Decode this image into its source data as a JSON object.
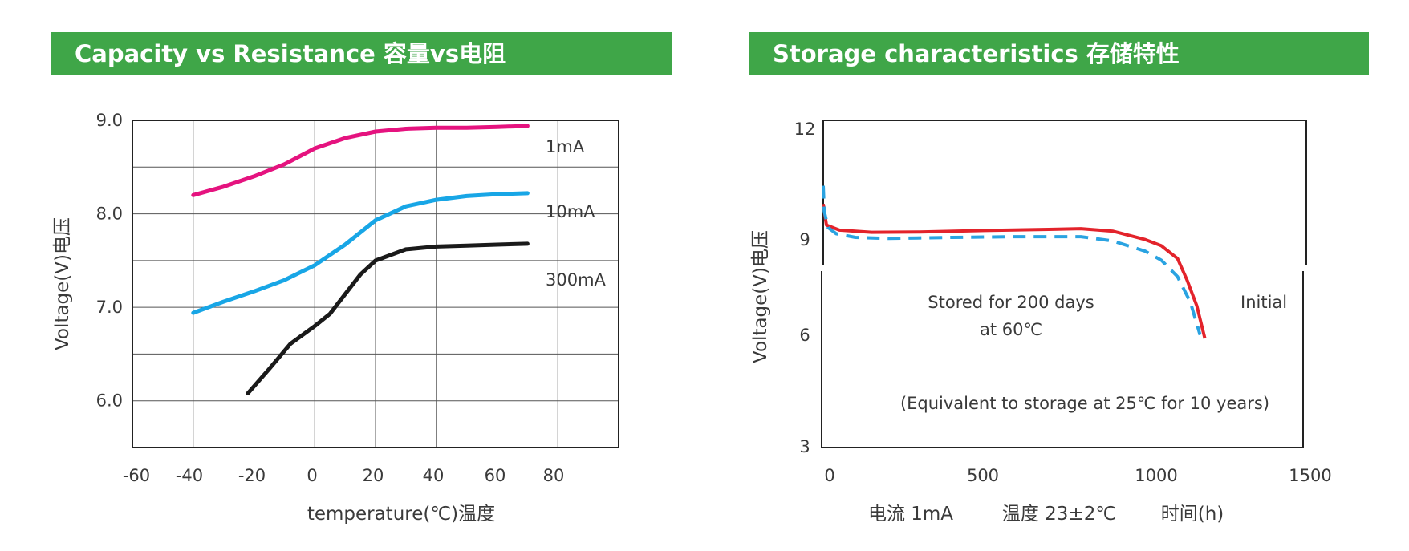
{
  "chart_data": [
    {
      "type": "line",
      "title": "Capacity vs Resistance 容量vs电阻",
      "xlabel": "temperature(℃)温度",
      "ylabel": "Voltage(V)电压",
      "xlim": [
        -60,
        100
      ],
      "ylim": [
        5.5,
        9.0
      ],
      "x_ticks": [
        "-60",
        "-40",
        "-20",
        "0",
        "20",
        "40",
        "60",
        "80"
      ],
      "y_ticks": [
        {
          "label": "9.0",
          "value": 9.0
        },
        {
          "label": "8.0",
          "value": 8.0
        },
        {
          "label": "7.0",
          "value": 7.0
        },
        {
          "label": "6.0",
          "value": 6.0
        }
      ],
      "grid": true,
      "series": [
        {
          "name": "1mA",
          "color": "#e5137f",
          "x": [
            -40,
            -30,
            -20,
            -10,
            0,
            10,
            20,
            30,
            40,
            50,
            60,
            70
          ],
          "y": [
            8.2,
            8.29,
            8.4,
            8.53,
            8.7,
            8.81,
            8.88,
            8.91,
            8.92,
            8.92,
            8.93,
            8.94
          ]
        },
        {
          "name": "10mA",
          "color": "#18a6e6",
          "x": [
            -40,
            -30,
            -20,
            -10,
            0,
            10,
            20,
            30,
            40,
            50,
            60,
            70
          ],
          "y": [
            6.94,
            7.06,
            7.17,
            7.29,
            7.45,
            7.67,
            7.93,
            8.08,
            8.15,
            8.19,
            8.21,
            8.22
          ]
        },
        {
          "name": "300mA",
          "color": "#1a1a1a",
          "x": [
            -22,
            -15,
            -8,
            0,
            5,
            10,
            15,
            20,
            30,
            40,
            50,
            60,
            70
          ],
          "y": [
            6.08,
            6.34,
            6.61,
            6.8,
            6.93,
            7.14,
            7.35,
            7.5,
            7.62,
            7.65,
            7.66,
            7.67,
            7.68
          ]
        }
      ]
    },
    {
      "type": "line",
      "title": "Storage characteristics 存储特性",
      "ylabel": "Voltage(V)电压",
      "xlabel_parts": [
        "电流 1mA",
        "温度 23±2℃",
        "时间(h)"
      ],
      "xlim": [
        0,
        1500
      ],
      "ylim": [
        3,
        12
      ],
      "x_ticks": [
        "0",
        "500",
        "1000",
        "1500"
      ],
      "y_ticks": [
        "12",
        "9",
        "6",
        "3"
      ],
      "grid": false,
      "annotations": [
        "Stored for 200 days",
        "at 60℃",
        "(Equivalent to storage at 25℃ for 10 years)"
      ],
      "series": [
        {
          "name": "Initial",
          "color": "#e3232b",
          "dashed": false,
          "x": [
            0,
            10,
            50,
            150,
            300,
            500,
            700,
            800,
            900,
            1000,
            1050,
            1100,
            1130,
            1160,
            1185
          ],
          "y": [
            9.7,
            9.12,
            8.98,
            8.92,
            8.93,
            8.97,
            9.0,
            9.02,
            8.95,
            8.72,
            8.55,
            8.2,
            7.6,
            6.9,
            6.0
          ]
        },
        {
          "name": "",
          "color": "#2aa3e1",
          "dashed": true,
          "x": [
            0,
            3,
            15,
            40,
            100,
            200,
            400,
            600,
            800,
            900,
            1000,
            1050,
            1100,
            1140,
            1170
          ],
          "y": [
            10.2,
            9.5,
            9.05,
            8.88,
            8.78,
            8.75,
            8.78,
            8.8,
            8.8,
            8.68,
            8.4,
            8.15,
            7.7,
            7.0,
            6.1
          ]
        }
      ]
    }
  ]
}
